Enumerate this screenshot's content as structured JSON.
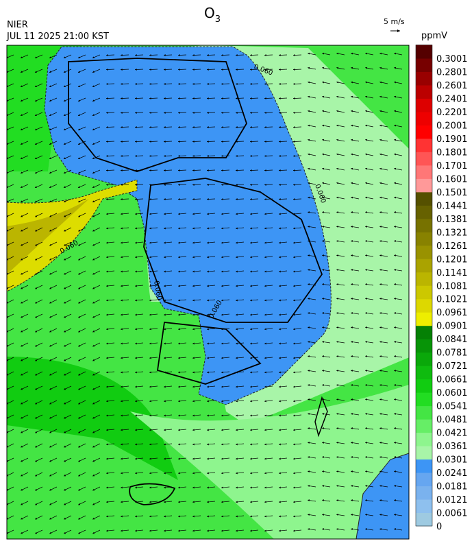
{
  "header": {
    "title": {
      "main": "O",
      "subscript": "3"
    },
    "agency": "NIER",
    "datetime": "JUL 11 2025 21:00 KST",
    "wind_scale": "5 m/s"
  },
  "colorbar": {
    "unit": "ppmV",
    "labels": [
      "0",
      "0.0061",
      "0.0121",
      "0.0181",
      "0.0241",
      "0.0301",
      "0.0361",
      "0.0421",
      "0.0481",
      "0.0541",
      "0.0601",
      "0.0661",
      "0.0721",
      "0.0781",
      "0.0841",
      "0.0901",
      "0.0961",
      "0.1021",
      "0.1081",
      "0.1141",
      "0.1201",
      "0.1261",
      "0.1321",
      "0.1381",
      "0.1441",
      "0.1501",
      "0.1601",
      "0.1701",
      "0.1801",
      "0.1901",
      "0.2001",
      "0.2201",
      "0.2401",
      "0.2601",
      "0.2801",
      "0.3001"
    ],
    "colors": [
      "#9ecae1",
      "#8ec0ee",
      "#7ab2ee",
      "#66a6f0",
      "#3d95f5",
      "#a8f5a8",
      "#8ef58e",
      "#66ee66",
      "#44e544",
      "#22dd22",
      "#11cc11",
      "#0fbb0f",
      "#0aa80a",
      "#079407",
      "#058005",
      "#eeee00",
      "#ddd800",
      "#ccc800",
      "#bbb500",
      "#aaa300",
      "#999200",
      "#888200",
      "#777200",
      "#666100",
      "#555000",
      "#ff9999",
      "#ff7777",
      "#ff5555",
      "#ff3333",
      "#ff0000",
      "#ee0000",
      "#dd0000",
      "#bb0000",
      "#990000",
      "#770000",
      "#550000"
    ]
  },
  "contour_labels": [
    "0.060",
    "0.060",
    "0.060",
    "0.060",
    "0.060"
  ]
}
